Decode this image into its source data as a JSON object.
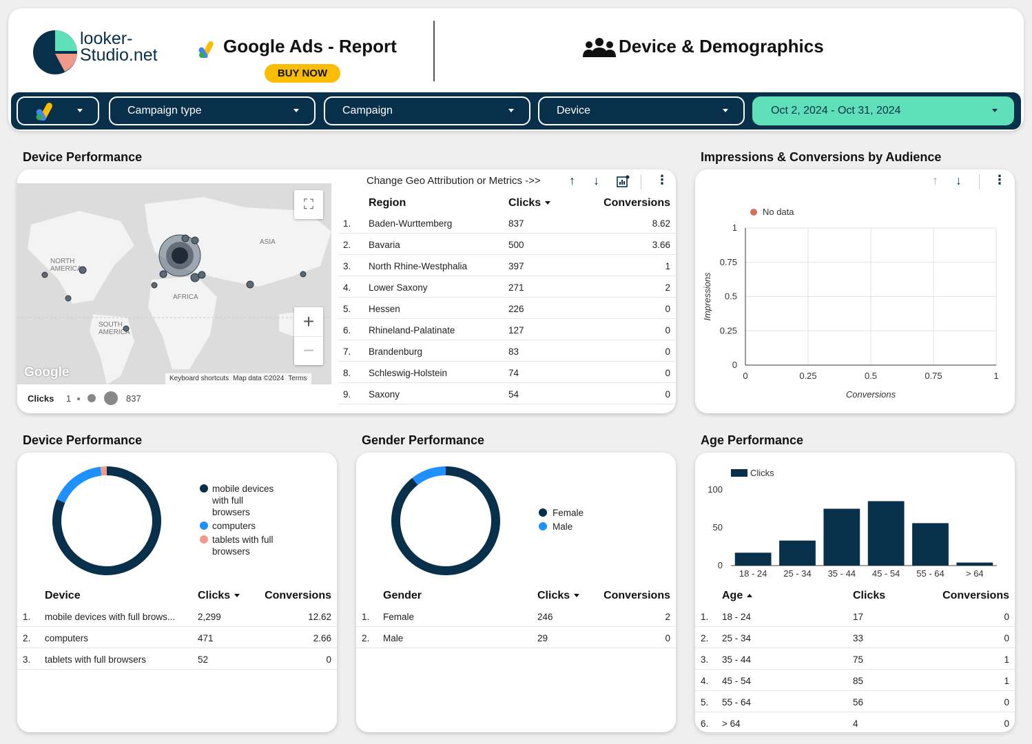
{
  "brand": {
    "logo_line1": "looker-",
    "logo_line2": "Studio.net"
  },
  "report": {
    "title": "Google Ads - Report",
    "buy_label": "BUY NOW",
    "page_title": "Device & Demographics"
  },
  "filters": {
    "campaign_type": "Campaign type",
    "campaign": "Campaign",
    "device": "Device",
    "date_range": "Oct 2, 2024 - Oct 31, 2024"
  },
  "geo": {
    "title": "Device Performance",
    "control_label": "Change Geo Attribution or Metrics ->>",
    "map_labels": {
      "north_america": "NORTH AMERICA",
      "south_america": "SOUTH AMERICA",
      "asia": "ASIA",
      "africa": "AFRICA",
      "google": "Google",
      "keyboard": "Keyboard shortcuts",
      "mapdata": "Map data ©2024",
      "terms": "Terms"
    },
    "legend": {
      "metric": "Clicks",
      "min": "1",
      "max": "837"
    },
    "columns": {
      "region": "Region",
      "clicks": "Clicks",
      "conversions": "Conversions"
    },
    "rows": [
      {
        "idx": "1.",
        "region": "Baden-Wurttemberg",
        "clicks": "837",
        "conv": "8.62"
      },
      {
        "idx": "2.",
        "region": "Bavaria",
        "clicks": "500",
        "conv": "3.66"
      },
      {
        "idx": "3.",
        "region": "North Rhine-Westphalia",
        "clicks": "397",
        "conv": "1"
      },
      {
        "idx": "4.",
        "region": "Lower Saxony",
        "clicks": "271",
        "conv": "2"
      },
      {
        "idx": "5.",
        "region": "Hessen",
        "clicks": "226",
        "conv": "0"
      },
      {
        "idx": "6.",
        "region": "Rhineland-Palatinate",
        "clicks": "127",
        "conv": "0"
      },
      {
        "idx": "7.",
        "region": "Brandenburg",
        "clicks": "83",
        "conv": "0"
      },
      {
        "idx": "8.",
        "region": "Schleswig-Holstein",
        "clicks": "74",
        "conv": "0"
      },
      {
        "idx": "9.",
        "region": "Saxony",
        "clicks": "54",
        "conv": "0"
      }
    ]
  },
  "scatter": {
    "title": "Impressions & Conversions by Audience",
    "legend": "No data",
    "ylabel": "Impressions",
    "xlabel": "Conversions",
    "yticks": [
      "1",
      "0.75",
      "0.5",
      "0.25",
      "0"
    ],
    "xticks": [
      "0",
      "0.25",
      "0.5",
      "0.75",
      "1"
    ]
  },
  "device": {
    "title": "Device Performance",
    "legend": [
      {
        "line1": "mobile devices",
        "line2": "with full",
        "line3": "browsers",
        "color": "#08304a"
      },
      {
        "line1": "computers",
        "color": "#1e90ff"
      },
      {
        "line1": "tablets with full",
        "line2": "browsers",
        "color": "#f19a8a"
      }
    ],
    "columns": {
      "name": "Device",
      "clicks": "Clicks",
      "conversions": "Conversions"
    },
    "rows": [
      {
        "idx": "1.",
        "name": "mobile devices with full brows...",
        "clicks": "2,299",
        "conv": "12.62"
      },
      {
        "idx": "2.",
        "name": "computers",
        "clicks": "471",
        "conv": "2.66"
      },
      {
        "idx": "3.",
        "name": "tablets with full browsers",
        "clicks": "52",
        "conv": "0"
      }
    ]
  },
  "gender": {
    "title": "Gender Performance",
    "legend": [
      {
        "label": "Female",
        "color": "#08304a"
      },
      {
        "label": "Male",
        "color": "#1e90ff"
      }
    ],
    "columns": {
      "name": "Gender",
      "clicks": "Clicks",
      "conversions": "Conversions"
    },
    "rows": [
      {
        "idx": "1.",
        "name": "Female",
        "clicks": "246",
        "conv": "2"
      },
      {
        "idx": "2.",
        "name": "Male",
        "clicks": "29",
        "conv": "0"
      }
    ]
  },
  "age": {
    "title": "Age Performance",
    "columns": {
      "name": "Age",
      "clicks": "Clicks",
      "conversions": "Conversions"
    },
    "rows": [
      {
        "idx": "1.",
        "name": "18 - 24",
        "clicks": "17",
        "conv": "0"
      },
      {
        "idx": "2.",
        "name": "25 - 34",
        "clicks": "33",
        "conv": "0"
      },
      {
        "idx": "3.",
        "name": "35 - 44",
        "clicks": "75",
        "conv": "1"
      },
      {
        "idx": "4.",
        "name": "45 - 54",
        "clicks": "85",
        "conv": "1"
      },
      {
        "idx": "5.",
        "name": "55 - 64",
        "clicks": "56",
        "conv": "0"
      },
      {
        "idx": "6.",
        "name": "> 64",
        "clicks": "4",
        "conv": "0"
      }
    ]
  },
  "chart_data": [
    {
      "type": "pie",
      "categories": [
        "mobile devices with full browsers",
        "computers",
        "tablets with full browsers"
      ],
      "values": [
        2299,
        471,
        52
      ],
      "colors": [
        "#08304a",
        "#1e90ff",
        "#f19a8a"
      ]
    },
    {
      "type": "pie",
      "categories": [
        "Female",
        "Male"
      ],
      "values": [
        246,
        29
      ],
      "colors": [
        "#08304a",
        "#1e90ff"
      ]
    },
    {
      "type": "bar",
      "categories": [
        "18 - 24",
        "25 - 34",
        "35 - 44",
        "45 - 54",
        "55 - 64",
        "> 64"
      ],
      "series": [
        {
          "name": "Clicks",
          "values": [
            17,
            33,
            75,
            85,
            56,
            4
          ]
        }
      ],
      "ylim": [
        0,
        100
      ],
      "yticks": [
        0,
        50,
        100
      ],
      "color": "#08304a"
    },
    {
      "type": "scatter",
      "legend": "No data",
      "xlabel": "Conversions",
      "ylabel": "Impressions",
      "xlim": [
        0,
        1
      ],
      "ylim": [
        0,
        1
      ]
    }
  ]
}
